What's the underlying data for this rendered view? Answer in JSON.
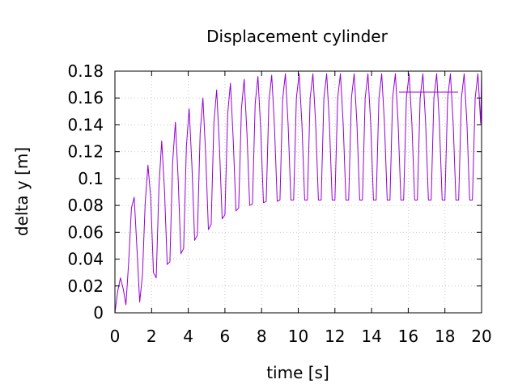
{
  "chart_data": {
    "type": "line",
    "title": "Displacement cylinder",
    "xlabel": "time [s]",
    "ylabel": "delta y [m]",
    "xlim": [
      0,
      20
    ],
    "ylim": [
      0,
      0.18
    ],
    "x_ticks": [
      0,
      2,
      4,
      6,
      8,
      10,
      12,
      14,
      16,
      18,
      20
    ],
    "x_tick_labels": [
      "0",
      "2",
      "4",
      "6",
      "8",
      "10",
      "12",
      "14",
      "16",
      "18",
      "20"
    ],
    "y_ticks": [
      0,
      0.02,
      0.04,
      0.06,
      0.08,
      0.1,
      0.12,
      0.14,
      0.16,
      0.18
    ],
    "y_tick_labels": [
      "0",
      "0.02",
      "0.04",
      "0.06",
      "0.08",
      "0.1",
      "0.12",
      "0.14",
      "0.16",
      "0.18"
    ],
    "grid": true,
    "legend": "top-right",
    "series": [
      {
        "color": "#9400d3",
        "x": [
          0,
          0.15,
          0.3,
          0.45,
          0.6,
          0.75,
          0.9,
          1.05,
          1.2,
          1.35,
          1.5,
          1.65,
          1.8,
          1.95,
          2.1,
          2.25,
          2.4,
          2.55,
          2.7,
          2.85,
          3.0,
          3.15,
          3.3,
          3.45,
          3.6,
          3.75,
          3.9,
          4.05,
          4.2,
          4.35,
          4.5,
          4.65,
          4.8,
          4.95,
          5.1,
          5.25,
          5.4,
          5.55,
          5.7,
          5.85,
          6.0,
          6.15,
          6.3,
          6.45,
          6.6,
          6.75,
          6.9,
          7.05,
          7.2,
          7.35,
          7.5,
          7.65,
          7.8,
          7.95,
          8.1,
          8.25,
          8.4,
          8.55,
          8.7,
          8.85,
          9.0,
          9.15,
          9.3,
          9.45,
          9.6,
          9.75,
          9.9,
          10.05,
          10.2,
          10.35,
          10.5,
          10.65,
          10.8,
          10.95,
          11.1,
          11.25,
          11.4,
          11.55,
          11.7,
          11.85,
          12.0,
          12.15,
          12.3,
          12.45,
          12.6,
          12.75,
          12.9,
          13.05,
          13.2,
          13.35,
          13.5,
          13.65,
          13.8,
          13.95,
          14.1,
          14.25,
          14.4,
          14.55,
          14.7,
          14.85,
          15.0,
          15.15,
          15.3,
          15.45,
          15.6,
          15.75,
          15.9,
          16.05,
          16.2,
          16.35,
          16.5,
          16.65,
          16.8,
          16.95,
          17.1,
          17.25,
          17.4,
          17.55,
          17.7,
          17.85,
          18.0,
          18.15,
          18.3,
          18.45,
          18.6,
          18.75,
          18.9,
          19.05,
          19.2,
          19.35,
          19.5,
          19.65,
          19.8,
          19.95,
          20.0
        ],
        "y": [
          0.0,
          0.016,
          0.026,
          0.018,
          0.006,
          0.038,
          0.078,
          0.086,
          0.048,
          0.008,
          0.028,
          0.082,
          0.11,
          0.086,
          0.03,
          0.026,
          0.094,
          0.128,
          0.092,
          0.036,
          0.038,
          0.112,
          0.142,
          0.1,
          0.044,
          0.048,
          0.124,
          0.152,
          0.11,
          0.054,
          0.058,
          0.134,
          0.16,
          0.118,
          0.062,
          0.066,
          0.142,
          0.166,
          0.124,
          0.07,
          0.073,
          0.148,
          0.171,
          0.13,
          0.076,
          0.078,
          0.152,
          0.174,
          0.134,
          0.08,
          0.081,
          0.156,
          0.176,
          0.137,
          0.082,
          0.083,
          0.158,
          0.177,
          0.139,
          0.083,
          0.084,
          0.159,
          0.178,
          0.14,
          0.084,
          0.084,
          0.16,
          0.178,
          0.141,
          0.084,
          0.084,
          0.16,
          0.178,
          0.141,
          0.084,
          0.084,
          0.16,
          0.178,
          0.141,
          0.084,
          0.084,
          0.16,
          0.178,
          0.141,
          0.084,
          0.084,
          0.16,
          0.178,
          0.141,
          0.084,
          0.084,
          0.16,
          0.178,
          0.141,
          0.084,
          0.084,
          0.16,
          0.178,
          0.141,
          0.084,
          0.084,
          0.16,
          0.178,
          0.141,
          0.084,
          0.084,
          0.16,
          0.178,
          0.141,
          0.084,
          0.084,
          0.16,
          0.178,
          0.141,
          0.084,
          0.084,
          0.16,
          0.178,
          0.141,
          0.084,
          0.084,
          0.16,
          0.178,
          0.141,
          0.084,
          0.084,
          0.16,
          0.178,
          0.141,
          0.084,
          0.084,
          0.16,
          0.178,
          0.141,
          0.178
        ]
      }
    ]
  }
}
